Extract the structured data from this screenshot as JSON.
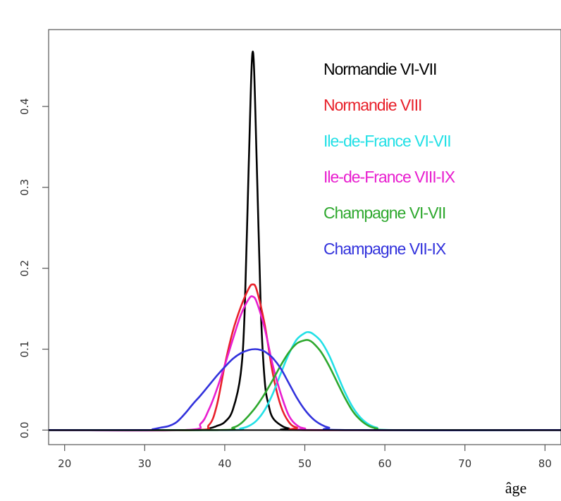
{
  "chart_data": {
    "type": "line",
    "title": "",
    "xlabel": "âge",
    "ylabel": "",
    "xlim": [
      18,
      82
    ],
    "ylim": [
      -0.018,
      0.495
    ],
    "grid": false,
    "legend_position": "top-right",
    "x_ticks": [
      {
        "value": 20,
        "label": "20"
      },
      {
        "value": 30,
        "label": "30"
      },
      {
        "value": 40,
        "label": "40"
      },
      {
        "value": 50,
        "label": "50"
      },
      {
        "value": 60,
        "label": "60"
      },
      {
        "value": 70,
        "label": "70"
      },
      {
        "value": 80,
        "label": "80"
      }
    ],
    "y_ticks": [
      {
        "value": 0.0,
        "label": "0.0"
      },
      {
        "value": 0.1,
        "label": "0.1"
      },
      {
        "value": 0.2,
        "label": "0.2"
      },
      {
        "value": 0.3,
        "label": "0.3"
      },
      {
        "value": 0.4,
        "label": "0.4"
      }
    ],
    "series": [
      {
        "name": "Normandie VI-VII",
        "color": "#000000",
        "points": [
          [
            18,
            0
          ],
          [
            36,
            0
          ],
          [
            38,
            0.002
          ],
          [
            39,
            0.005
          ],
          [
            40,
            0.01
          ],
          [
            41,
            0.025
          ],
          [
            42,
            0.07
          ],
          [
            42.5,
            0.15
          ],
          [
            43,
            0.33
          ],
          [
            43.5,
            0.468
          ],
          [
            44,
            0.33
          ],
          [
            44.5,
            0.15
          ],
          [
            45,
            0.06
          ],
          [
            45.5,
            0.03
          ],
          [
            46,
            0.015
          ],
          [
            47,
            0.006
          ],
          [
            48,
            0.002
          ],
          [
            50,
            0
          ],
          [
            82,
            0
          ]
        ]
      },
      {
        "name": "Normandie VIII",
        "color": "#e8202a",
        "points": [
          [
            18,
            0
          ],
          [
            36,
            0
          ],
          [
            38,
            0.006
          ],
          [
            39,
            0.03
          ],
          [
            40,
            0.08
          ],
          [
            41,
            0.122
          ],
          [
            42,
            0.152
          ],
          [
            43,
            0.175
          ],
          [
            43.5,
            0.18
          ],
          [
            44,
            0.173
          ],
          [
            45,
            0.13
          ],
          [
            46,
            0.07
          ],
          [
            47,
            0.03
          ],
          [
            48,
            0.01
          ],
          [
            49,
            0.003
          ],
          [
            51,
            0
          ],
          [
            82,
            0
          ]
        ]
      },
      {
        "name": "Ile-de-France VI-VII",
        "color": "#22e0e6",
        "points": [
          [
            18,
            0
          ],
          [
            40,
            0
          ],
          [
            42,
            0.002
          ],
          [
            43,
            0.005
          ],
          [
            44,
            0.012
          ],
          [
            45,
            0.025
          ],
          [
            46,
            0.045
          ],
          [
            47,
            0.07
          ],
          [
            48,
            0.094
          ],
          [
            49,
            0.112
          ],
          [
            50,
            0.12
          ],
          [
            50.5,
            0.121
          ],
          [
            51,
            0.119
          ],
          [
            52,
            0.11
          ],
          [
            53,
            0.093
          ],
          [
            54,
            0.07
          ],
          [
            55,
            0.047
          ],
          [
            56,
            0.028
          ],
          [
            57,
            0.015
          ],
          [
            58,
            0.007
          ],
          [
            59,
            0.003
          ],
          [
            61,
            0
          ],
          [
            82,
            0
          ]
        ]
      },
      {
        "name": "Ile-de-France VIII-IX",
        "color": "#e81ecf",
        "points": [
          [
            18,
            0
          ],
          [
            35,
            0
          ],
          [
            37,
            0.008
          ],
          [
            38,
            0.025
          ],
          [
            39,
            0.05
          ],
          [
            40,
            0.08
          ],
          [
            41,
            0.112
          ],
          [
            42,
            0.142
          ],
          [
            43,
            0.162
          ],
          [
            43.5,
            0.165
          ],
          [
            44,
            0.158
          ],
          [
            45,
            0.125
          ],
          [
            46,
            0.08
          ],
          [
            47,
            0.045
          ],
          [
            48,
            0.018
          ],
          [
            49,
            0.006
          ],
          [
            50,
            0.002
          ],
          [
            52,
            0
          ],
          [
            82,
            0
          ]
        ]
      },
      {
        "name": "Champagne VI-VII",
        "color": "#2ea82e",
        "points": [
          [
            18,
            0
          ],
          [
            39,
            0
          ],
          [
            41,
            0.003
          ],
          [
            42,
            0.008
          ],
          [
            43,
            0.018
          ],
          [
            44,
            0.03
          ],
          [
            45,
            0.045
          ],
          [
            46,
            0.062
          ],
          [
            47,
            0.08
          ],
          [
            48,
            0.096
          ],
          [
            49,
            0.107
          ],
          [
            50,
            0.111
          ],
          [
            50.5,
            0.111
          ],
          [
            51,
            0.108
          ],
          [
            52,
            0.097
          ],
          [
            53,
            0.08
          ],
          [
            54,
            0.06
          ],
          [
            55,
            0.04
          ],
          [
            56,
            0.023
          ],
          [
            57,
            0.012
          ],
          [
            58,
            0.005
          ],
          [
            59,
            0.002
          ],
          [
            61,
            0
          ],
          [
            82,
            0
          ]
        ]
      },
      {
        "name": "Champagne VII-IX",
        "color": "#3232dc",
        "points": [
          [
            18,
            0
          ],
          [
            30,
            0
          ],
          [
            31,
            0.001
          ],
          [
            32,
            0.003
          ],
          [
            33,
            0.005
          ],
          [
            34,
            0.01
          ],
          [
            35,
            0.02
          ],
          [
            36,
            0.032
          ],
          [
            37,
            0.043
          ],
          [
            38,
            0.055
          ],
          [
            39,
            0.067
          ],
          [
            40,
            0.078
          ],
          [
            41,
            0.088
          ],
          [
            42,
            0.095
          ],
          [
            43,
            0.099
          ],
          [
            43.8,
            0.1
          ],
          [
            44.5,
            0.099
          ],
          [
            45,
            0.097
          ],
          [
            46,
            0.089
          ],
          [
            47,
            0.076
          ],
          [
            48,
            0.058
          ],
          [
            49,
            0.04
          ],
          [
            50,
            0.025
          ],
          [
            51,
            0.014
          ],
          [
            52,
            0.007
          ],
          [
            53,
            0.003
          ],
          [
            55,
            0
          ],
          [
            82,
            0
          ]
        ]
      }
    ],
    "baseline": {
      "color": "#000000",
      "y": 0
    }
  }
}
